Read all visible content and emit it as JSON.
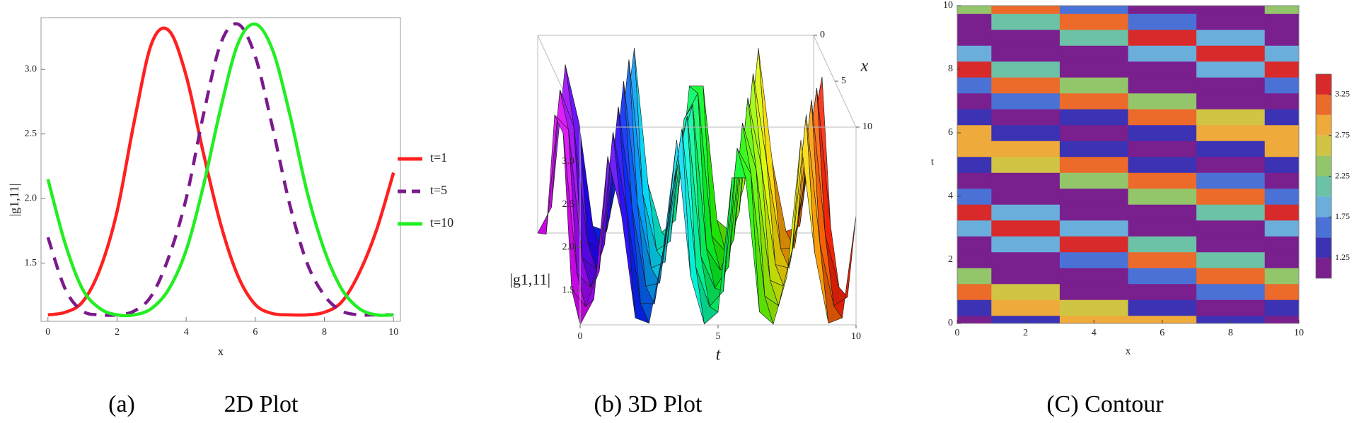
{
  "chart_data": [
    {
      "type": "line",
      "label": "(a)",
      "title": "2D Plot",
      "xlabel": "x",
      "ylabel": "|g1,11|",
      "x": [
        0,
        0.5,
        1,
        1.5,
        2,
        2.5,
        3,
        3.5,
        4,
        4.5,
        5,
        5.5,
        6,
        6.5,
        7,
        7.5,
        8,
        8.5,
        9,
        9.5,
        10
      ],
      "series": [
        {
          "name": "t=1",
          "color": "#ff2020",
          "style": "solid",
          "values": [
            1.1,
            1.12,
            1.2,
            1.45,
            1.9,
            2.6,
            3.2,
            3.3,
            2.95,
            2.35,
            1.8,
            1.4,
            1.18,
            1.11,
            1.1,
            1.1,
            1.12,
            1.2,
            1.42,
            1.75,
            2.2
          ]
        },
        {
          "name": "t=5",
          "color": "#7b1a8c",
          "style": "dashed",
          "values": [
            1.7,
            1.3,
            1.13,
            1.1,
            1.1,
            1.13,
            1.25,
            1.55,
            2.0,
            2.65,
            3.2,
            3.35,
            3.1,
            2.55,
            1.95,
            1.5,
            1.25,
            1.13,
            1.1,
            1.1,
            1.1
          ]
        },
        {
          "name": "t=10",
          "color": "#22ee22",
          "style": "solid",
          "values": [
            2.15,
            1.65,
            1.3,
            1.15,
            1.1,
            1.1,
            1.15,
            1.3,
            1.6,
            2.1,
            2.7,
            3.2,
            3.35,
            3.15,
            2.65,
            2.05,
            1.6,
            1.3,
            1.15,
            1.1,
            1.1
          ]
        }
      ],
      "xlim": [
        -0.2,
        10.2
      ],
      "ylim": [
        1.05,
        3.4
      ],
      "xticks": [
        0,
        2,
        4,
        6,
        8,
        10
      ],
      "yticks": [
        1.5,
        {
          "value": 2,
          "label": "2.0"
        },
        2.5,
        {
          "value": 3,
          "label": "3.0"
        }
      ],
      "legend": "right"
    },
    {
      "type": "surface3d",
      "title": "(b) 3D Plot",
      "xlabel": "x",
      "tlabel": "t",
      "zlabel": "|g1,11|",
      "x": [
        0,
        2,
        4,
        6,
        8,
        10
      ],
      "t": [
        0,
        0.5,
        1,
        1.5,
        2,
        2.5,
        3,
        3.5,
        4,
        4.5,
        5,
        5.5,
        6,
        6.5,
        7,
        7.5,
        8,
        8.5,
        9,
        9.5,
        10
      ],
      "z": [
        [
          1.1,
          1.3,
          2.9,
          2.9,
          1.3,
          1.1
        ],
        [
          1.4,
          2.98,
          2.73,
          1.27,
          1.1,
          1.4
        ],
        [
          3.06,
          2.55,
          1.24,
          1.11,
          1.51,
          3.06
        ],
        [
          2.38,
          1.21,
          1.11,
          1.61,
          3.13,
          2.38
        ],
        [
          1.18,
          1.11,
          1.72,
          3.21,
          2.2,
          1.18
        ],
        [
          1.12,
          1.82,
          3.29,
          2.03,
          1.14,
          1.12
        ],
        [
          1.94,
          3.33,
          1.87,
          1.12,
          1.13,
          1.94
        ],
        [
          3.25,
          1.77,
          1.12,
          1.16,
          2.12,
          3.25
        ],
        [
          1.67,
          1.11,
          1.19,
          2.29,
          3.17,
          1.67
        ],
        [
          1.11,
          1.22,
          2.47,
          3.1,
          1.56,
          1.11
        ],
        [
          1.25,
          2.64,
          3.02,
          1.46,
          1.1,
          1.25
        ],
        [
          2.81,
          2.94,
          1.35,
          1.1,
          1.28,
          2.81
        ],
        [
          2.81,
          1.28,
          1.1,
          1.35,
          2.94,
          2.81
        ],
        [
          1.25,
          1.1,
          1.46,
          3.02,
          2.64,
          1.25
        ],
        [
          1.11,
          1.56,
          3.1,
          2.47,
          1.22,
          1.11
        ],
        [
          1.67,
          3.17,
          2.29,
          1.19,
          1.11,
          1.67
        ],
        [
          3.25,
          2.12,
          1.16,
          1.12,
          1.77,
          3.25
        ],
        [
          1.94,
          1.13,
          1.12,
          1.87,
          3.33,
          1.94
        ],
        [
          1.12,
          1.14,
          2.03,
          3.29,
          1.82,
          1.12
        ],
        [
          1.18,
          2.2,
          3.21,
          1.72,
          1.11,
          1.18
        ],
        [
          2.38,
          3.13,
          1.61,
          1.11,
          1.21,
          2.38
        ]
      ],
      "xlim": [
        0,
        10
      ],
      "tlim": [
        0,
        10
      ],
      "zlim": [
        1.1,
        3.4
      ],
      "xticks": [
        0,
        5,
        10
      ],
      "tticks": [
        0,
        5,
        10
      ],
      "zticks": [
        1.5,
        {
          "value": 2,
          "label": "2.0"
        },
        2.5,
        {
          "value": 3,
          "label": "3.0"
        }
      ]
    },
    {
      "type": "contour",
      "title": "(C) Contour",
      "xlabel": "x",
      "ylabel": "t",
      "x": [
        0,
        2,
        4,
        6,
        8,
        10
      ],
      "t": [
        0,
        0.5,
        1,
        1.5,
        2,
        2.5,
        3,
        3.5,
        4,
        4.5,
        5,
        5.5,
        6,
        6.5,
        7,
        7.5,
        8,
        8.5,
        9,
        9.5,
        10
      ],
      "z": [
        [
          1.1,
          1.3,
          2.9,
          2.9,
          1.3,
          1.1
        ],
        [
          1.4,
          2.98,
          2.73,
          1.27,
          1.1,
          1.4
        ],
        [
          3.06,
          2.55,
          1.24,
          1.11,
          1.51,
          3.06
        ],
        [
          2.38,
          1.21,
          1.11,
          1.61,
          3.13,
          2.38
        ],
        [
          1.18,
          1.11,
          1.72,
          3.21,
          2.2,
          1.18
        ],
        [
          1.12,
          1.82,
          3.29,
          2.03,
          1.14,
          1.12
        ],
        [
          1.94,
          3.33,
          1.87,
          1.12,
          1.13,
          1.94
        ],
        [
          3.25,
          1.77,
          1.12,
          1.16,
          2.12,
          3.25
        ],
        [
          1.67,
          1.11,
          1.19,
          2.29,
          3.17,
          1.67
        ],
        [
          1.11,
          1.22,
          2.47,
          3.1,
          1.56,
          1.11
        ],
        [
          1.25,
          2.64,
          3.02,
          1.46,
          1.1,
          1.25
        ],
        [
          2.81,
          2.94,
          1.35,
          1.1,
          1.28,
          2.81
        ],
        [
          2.81,
          1.28,
          1.1,
          1.35,
          2.94,
          2.81
        ],
        [
          1.25,
          1.1,
          1.46,
          3.02,
          2.64,
          1.25
        ],
        [
          1.11,
          1.56,
          3.1,
          2.47,
          1.22,
          1.11
        ],
        [
          1.67,
          3.17,
          2.29,
          1.19,
          1.11,
          1.67
        ],
        [
          3.25,
          2.12,
          1.16,
          1.12,
          1.77,
          3.25
        ],
        [
          1.94,
          1.13,
          1.12,
          1.87,
          3.33,
          1.94
        ],
        [
          1.12,
          1.14,
          2.03,
          3.29,
          1.82,
          1.12
        ],
        [
          1.18,
          2.2,
          3.21,
          1.72,
          1.11,
          1.18
        ],
        [
          2.38,
          3.13,
          1.61,
          1.11,
          1.21,
          2.38
        ]
      ],
      "xlim": [
        0,
        10
      ],
      "ylim": [
        0,
        10
      ],
      "xticks": [
        0,
        2,
        4,
        6,
        8,
        10
      ],
      "yticks": [
        0,
        2,
        4,
        6,
        8,
        10
      ],
      "levels": [
        1.0,
        1.25,
        1.5,
        1.75,
        2.0,
        2.25,
        2.5,
        2.75,
        3.0,
        3.25,
        3.5
      ],
      "colors": [
        "#7a1f8e",
        "#3b32b4",
        "#4a72d6",
        "#6aaedc",
        "#6cc2a6",
        "#93c66a",
        "#cfc443",
        "#eeaa3a",
        "#ec6a2a",
        "#d82a2a"
      ],
      "colorbar_ticks": [
        1.25,
        1.75,
        2.25,
        2.75,
        3.25
      ]
    }
  ]
}
